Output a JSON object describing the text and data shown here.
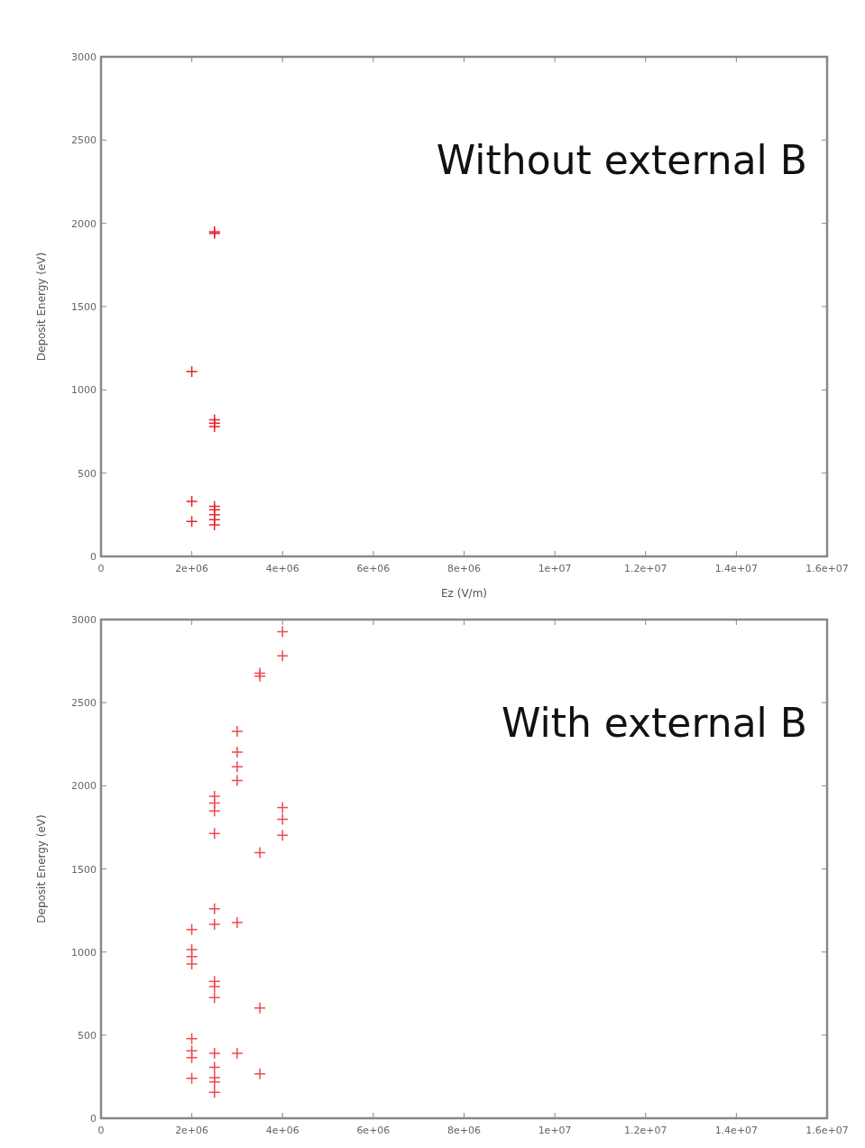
{
  "chart_data": [
    {
      "type": "scatter",
      "xlabel": "Ez (V/m)",
      "ylabel": "Deposit Energy (eV)",
      "annotations": [
        "Without external B"
      ],
      "xlim": [
        0,
        16000000
      ],
      "xticks": [
        0,
        {
          "value": 2000000,
          "label": "2e+06"
        },
        {
          "value": 4000000,
          "label": "4e+06"
        },
        {
          "value": 6000000,
          "label": "6e+06"
        },
        {
          "value": 8000000,
          "label": "8e+06"
        },
        {
          "value": 10000000,
          "label": "1e+07"
        },
        {
          "value": 12000000,
          "label": "1.2e+07"
        },
        {
          "value": 14000000,
          "label": "1.4e+07"
        },
        {
          "value": 16000000,
          "label": "1.6e+07"
        }
      ],
      "ylim": [
        0,
        3000
      ],
      "yticks": [
        0,
        500,
        1000,
        1500,
        2000,
        2500,
        3000
      ],
      "marker": "cross",
      "grid": false,
      "series": [
        {
          "color": "#e8242c",
          "x": [
            2000000,
            2000000,
            2000000,
            2500000,
            2500000,
            2500000,
            2500000,
            2500000,
            2500000,
            2500000,
            2500000,
            2500000,
            2500000
          ],
          "values": [
            1110,
            330,
            210,
            1940,
            1950,
            780,
            800,
            820,
            190,
            220,
            250,
            280,
            300
          ]
        }
      ]
    },
    {
      "type": "scatter",
      "ylabel": "Deposit Energy (eV)",
      "annotations": [
        "With external B"
      ],
      "xlim": [
        0,
        16000000
      ],
      "xticks": [
        0,
        {
          "value": 2000000,
          "label": "2e+06"
        },
        {
          "value": 4000000,
          "label": "4e+06"
        },
        {
          "value": 6000000,
          "label": "6e+06"
        },
        {
          "value": 8000000,
          "label": "8e+06"
        },
        {
          "value": 10000000,
          "label": "1e+07"
        },
        {
          "value": 12000000,
          "label": "1.2e+07"
        },
        {
          "value": 14000000,
          "label": "1.4e+07"
        },
        {
          "value": 16000000,
          "label": "1.6e+07"
        }
      ],
      "ylim": [
        0,
        3000
      ],
      "yticks": [
        0,
        500,
        1000,
        1500,
        2000,
        2500,
        3000
      ],
      "marker": "cross",
      "grid": false,
      "series": [
        {
          "color": "#ee4a50",
          "x": [
            2000000,
            2000000,
            2000000,
            2000000,
            2000000,
            2000000,
            2000000,
            2000000,
            2500000,
            2500000,
            2500000,
            2500000,
            2500000,
            2500000,
            2500000,
            2500000,
            2500000,
            2500000,
            2500000,
            2500000,
            2500000,
            2500000,
            3000000,
            3000000,
            3000000,
            3000000,
            3000000,
            3000000,
            3500000,
            3500000,
            3500000,
            3500000,
            3500000,
            4000000,
            4000000,
            4000000,
            4000000,
            4000000
          ],
          "values": [
            1135,
            1015,
            973,
            927,
            479,
            406,
            365,
            240,
            1937,
            1896,
            1848,
            1713,
            1260,
            1167,
            823,
            792,
            725,
            390,
            306,
            244,
            219,
            156,
            2327,
            2202,
            2115,
            2031,
            1177,
            390,
            2677,
            2660,
            1598,
            663,
            267,
            2927,
            2781,
            1869,
            1798,
            1702
          ]
        }
      ]
    }
  ]
}
